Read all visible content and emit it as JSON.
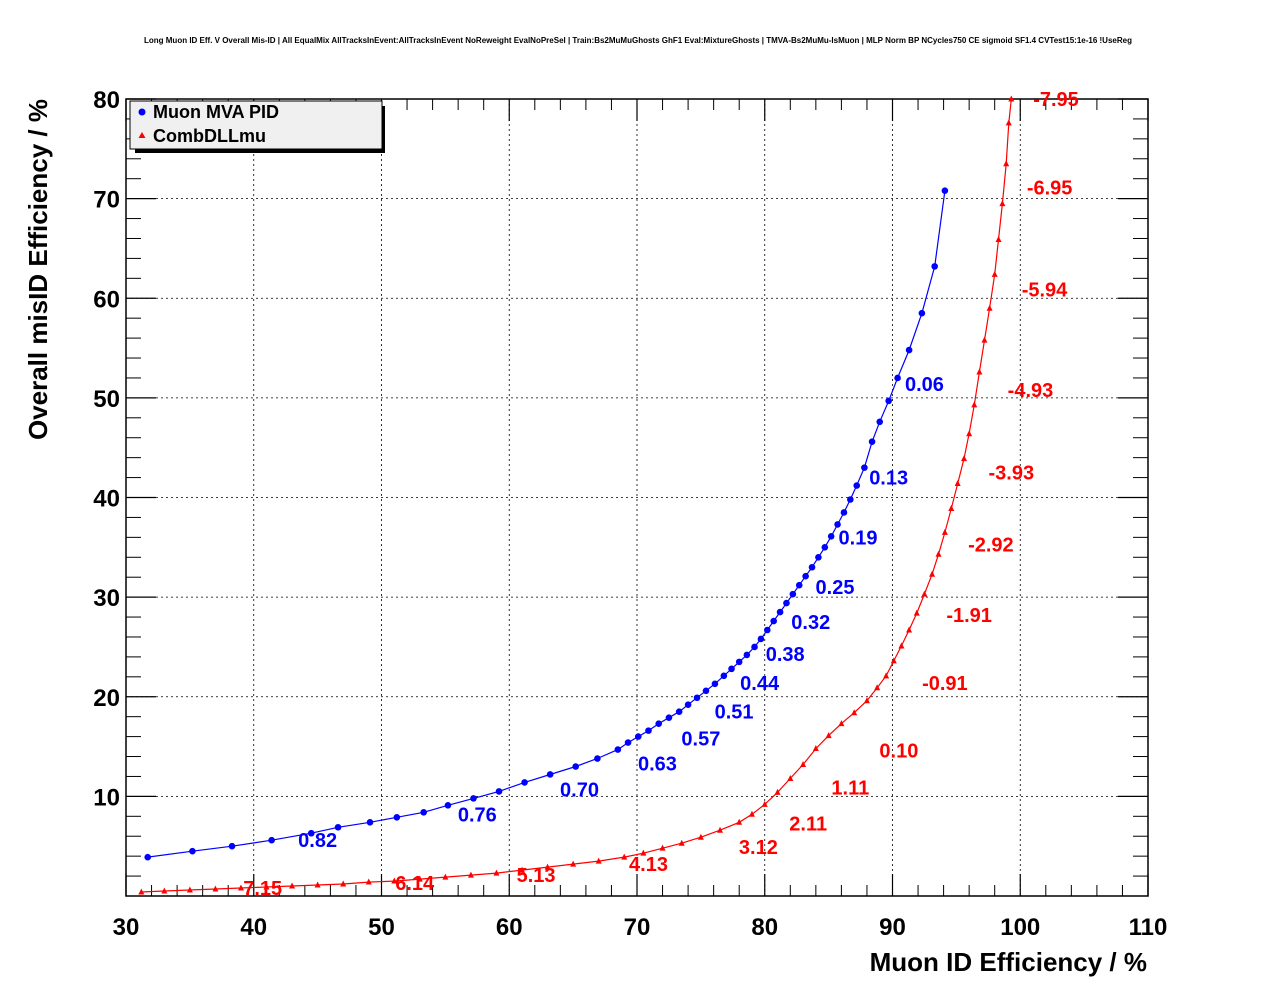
{
  "chart_data": {
    "type": "line",
    "title": "Long Muon ID Eff. V Overall Mis-ID | All EqualMix AllTracksInEvent:AllTracksInEvent NoReweight EvalNoPreSel | Train:Bs2MuMuGhosts GhF1 Eval:MixtureGhosts | TMVA-Bs2MuMu-IsMuon | MLP Norm BP NCycles750 CE sigmoid SF1.4 CVTest15:1e-16 !UseReg",
    "xlabel": "Muon ID Efficiency / %",
    "ylabel": "Overall misID Efficiency / %",
    "xlim": [
      30,
      110
    ],
    "ylim": [
      0,
      80
    ],
    "xticks": [
      30,
      40,
      50,
      60,
      70,
      80,
      90,
      100,
      110
    ],
    "yticks": [
      10,
      20,
      30,
      40,
      50,
      60,
      70,
      80
    ],
    "grid": true,
    "legend_position": "top-left",
    "series": [
      {
        "name": "Muon MVA PID",
        "color": "#0000ff",
        "marker": "circle",
        "x": [
          31.7,
          35.2,
          38.3,
          41.4,
          44.5,
          46.6,
          49.1,
          51.2,
          53.3,
          55.2,
          57.2,
          59.2,
          61.2,
          63.2,
          65.2,
          66.9,
          68.5,
          69.3,
          70.1,
          70.9,
          71.7,
          72.5,
          73.3,
          74.0,
          74.7,
          75.4,
          76.1,
          76.8,
          77.4,
          78.0,
          78.6,
          79.2,
          79.7,
          80.2,
          80.7,
          81.2,
          81.7,
          82.2,
          82.7,
          83.2,
          83.7,
          84.2,
          84.7,
          85.2,
          85.7,
          86.2,
          86.7,
          87.2,
          87.8,
          88.4,
          89.0,
          89.7,
          90.4,
          91.3,
          92.3,
          93.3,
          94.1
        ],
        "y": [
          3.9,
          4.5,
          5.0,
          5.6,
          6.3,
          6.9,
          7.4,
          7.9,
          8.4,
          9.1,
          9.8,
          10.5,
          11.4,
          12.2,
          13.0,
          13.8,
          14.7,
          15.4,
          16.0,
          16.6,
          17.3,
          17.9,
          18.5,
          19.2,
          19.9,
          20.6,
          21.3,
          22.1,
          22.8,
          23.5,
          24.2,
          25.0,
          25.8,
          26.7,
          27.6,
          28.5,
          29.4,
          30.3,
          31.2,
          32.1,
          33.0,
          34.0,
          35.0,
          36.1,
          37.3,
          38.5,
          39.8,
          41.2,
          43.0,
          45.6,
          47.6,
          49.7,
          52.0,
          54.8,
          58.5,
          63.2,
          70.8
        ]
      },
      {
        "name": "CombDLLmu",
        "color": "#ff0000",
        "marker": "triangle",
        "x": [
          31.2,
          33.0,
          35.0,
          37.0,
          39.0,
          41.0,
          43.0,
          45.0,
          47.0,
          49.0,
          51.0,
          53.0,
          55.0,
          57.0,
          59.0,
          61.0,
          63.0,
          65.0,
          67.0,
          69.0,
          70.5,
          72.0,
          73.5,
          75.0,
          76.5,
          78.0,
          79.0,
          80.0,
          81.0,
          82.0,
          83.0,
          84.0,
          85.0,
          86.0,
          87.0,
          88.0,
          88.8,
          89.5,
          90.1,
          90.7,
          91.3,
          91.9,
          92.5,
          93.1,
          93.6,
          94.1,
          94.6,
          95.1,
          95.6,
          96.0,
          96.4,
          96.8,
          97.2,
          97.6,
          98.0,
          98.3,
          98.6,
          98.9,
          99.1,
          99.3
        ],
        "y": [
          0.4,
          0.5,
          0.6,
          0.7,
          0.8,
          0.9,
          1.0,
          1.1,
          1.2,
          1.4,
          1.5,
          1.7,
          1.9,
          2.1,
          2.3,
          2.6,
          2.9,
          3.2,
          3.5,
          3.9,
          4.3,
          4.8,
          5.3,
          5.9,
          6.6,
          7.4,
          8.2,
          9.2,
          10.4,
          11.8,
          13.2,
          14.8,
          16.1,
          17.3,
          18.4,
          19.6,
          20.9,
          22.1,
          23.6,
          25.1,
          26.7,
          28.4,
          30.3,
          32.3,
          34.3,
          36.5,
          38.9,
          41.4,
          43.9,
          46.4,
          49.3,
          52.6,
          55.8,
          59.0,
          62.4,
          65.9,
          69.5,
          73.5,
          77.6,
          80.0
        ]
      }
    ],
    "annotations": [
      {
        "text": "0.06",
        "x": 92.5,
        "y": 51.4,
        "series": 0
      },
      {
        "text": "0.13",
        "x": 89.7,
        "y": 42.0,
        "series": 0
      },
      {
        "text": "0.19",
        "x": 87.3,
        "y": 36.0,
        "series": 0
      },
      {
        "text": "0.25",
        "x": 85.5,
        "y": 31.0,
        "series": 0
      },
      {
        "text": "0.32",
        "x": 83.6,
        "y": 27.5,
        "series": 0
      },
      {
        "text": "0.38",
        "x": 81.6,
        "y": 24.3,
        "series": 0
      },
      {
        "text": "0.44",
        "x": 79.6,
        "y": 21.4,
        "series": 0
      },
      {
        "text": "0.51",
        "x": 77.6,
        "y": 18.5,
        "series": 0
      },
      {
        "text": "0.57",
        "x": 75.0,
        "y": 15.8,
        "series": 0
      },
      {
        "text": "0.63",
        "x": 71.6,
        "y": 13.3,
        "series": 0
      },
      {
        "text": "0.70",
        "x": 65.5,
        "y": 10.7,
        "series": 0
      },
      {
        "text": "0.76",
        "x": 57.5,
        "y": 8.2,
        "series": 0
      },
      {
        "text": "0.82",
        "x": 45.0,
        "y": 5.6,
        "series": 0
      },
      {
        "text": "-7.95",
        "x": 102.8,
        "y": 80.0,
        "series": 1
      },
      {
        "text": "-6.95",
        "x": 102.3,
        "y": 71.1,
        "series": 1
      },
      {
        "text": "-5.94",
        "x": 101.9,
        "y": 60.9,
        "series": 1
      },
      {
        "text": "-4.93",
        "x": 100.8,
        "y": 50.8,
        "series": 1
      },
      {
        "text": "-3.93",
        "x": 99.3,
        "y": 42.5,
        "series": 1
      },
      {
        "text": "-2.92",
        "x": 97.7,
        "y": 35.3,
        "series": 1
      },
      {
        "text": "-1.91",
        "x": 96.0,
        "y": 28.2,
        "series": 1
      },
      {
        "text": "-0.91",
        "x": 94.1,
        "y": 21.4,
        "series": 1
      },
      {
        "text": "0.10",
        "x": 90.5,
        "y": 14.6,
        "series": 1
      },
      {
        "text": "1.11",
        "x": 86.7,
        "y": 10.9,
        "series": 1
      },
      {
        "text": "2.11",
        "x": 83.4,
        "y": 7.3,
        "series": 1
      },
      {
        "text": "3.12",
        "x": 79.5,
        "y": 4.9,
        "series": 1
      },
      {
        "text": "4.13",
        "x": 70.9,
        "y": 3.2,
        "series": 1
      },
      {
        "text": "5.13",
        "x": 62.1,
        "y": 2.1,
        "series": 1
      },
      {
        "text": "6.14",
        "x": 52.6,
        "y": 1.3,
        "series": 1
      },
      {
        "text": "7.15",
        "x": 40.7,
        "y": 0.8,
        "series": 1
      }
    ]
  }
}
